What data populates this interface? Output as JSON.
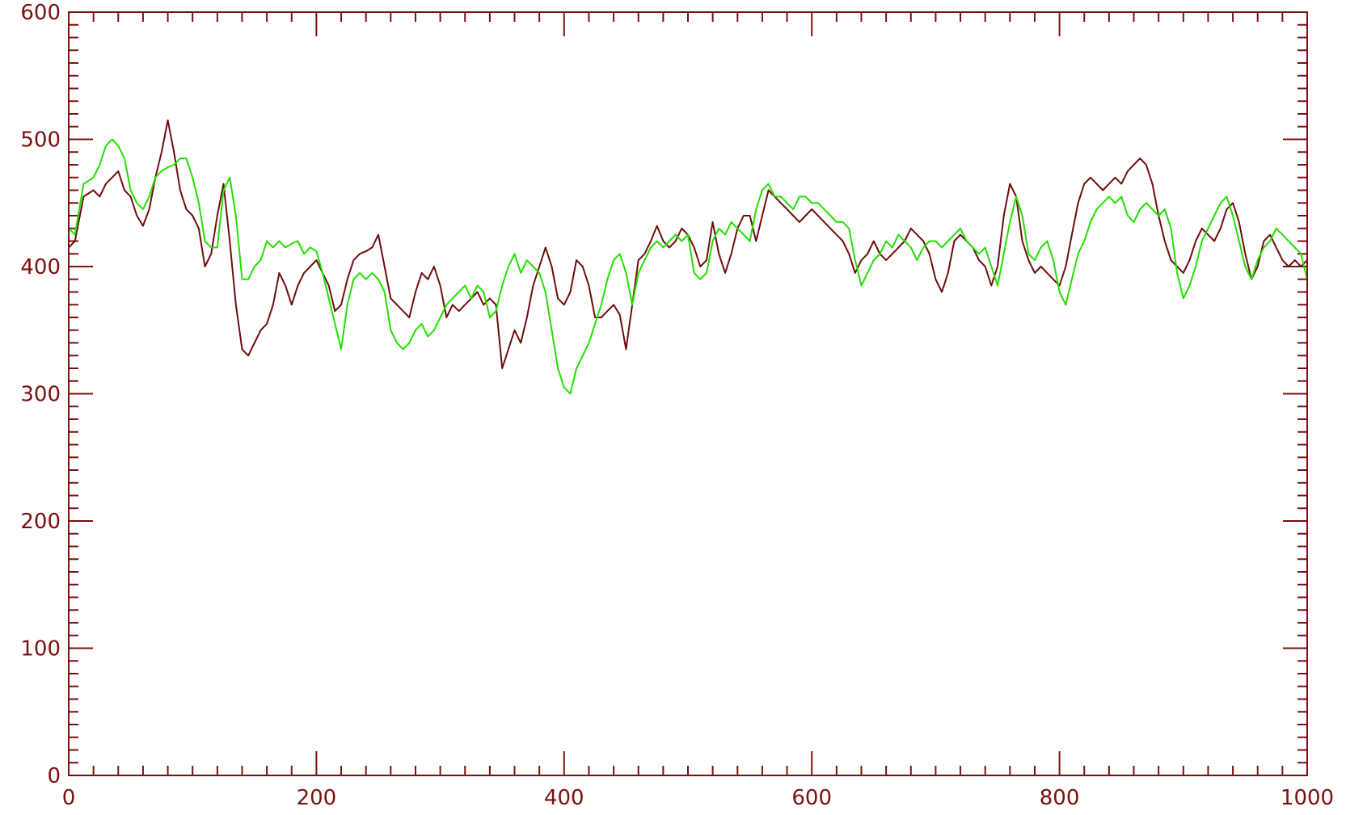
{
  "colors": {
    "axis": "#7a1010",
    "series_primary": "#6e0d0d",
    "series_secondary": "#22e000",
    "background": "#ffffff"
  },
  "chart_data": {
    "type": "line",
    "xlim": [
      0,
      1000
    ],
    "ylim": [
      0,
      600
    ],
    "x_ticks": [
      0,
      200,
      400,
      600,
      800,
      1000
    ],
    "y_ticks": [
      0,
      100,
      200,
      300,
      400,
      500,
      600
    ],
    "x_tick_labels": [
      "0",
      "200",
      "400",
      "600",
      "800",
      "1000"
    ],
    "y_tick_labels": [
      "0",
      "100",
      "200",
      "300",
      "400",
      "500",
      "600"
    ],
    "x_minor_step": 20,
    "y_minor_step": 10,
    "grid": false,
    "series": [
      {
        "color": "#6e0d0d",
        "x": [
          0,
          5,
          12,
          20,
          25,
          30,
          35,
          40,
          45,
          50,
          55,
          60,
          65,
          70,
          75,
          80,
          85,
          90,
          95,
          100,
          105,
          110,
          115,
          120,
          125,
          130,
          135,
          140,
          145,
          150,
          155,
          160,
          165,
          170,
          175,
          180,
          185,
          190,
          195,
          200,
          205,
          210,
          215,
          220,
          225,
          230,
          235,
          240,
          245,
          250,
          255,
          260,
          265,
          270,
          275,
          280,
          285,
          290,
          295,
          300,
          305,
          310,
          315,
          320,
          325,
          330,
          335,
          340,
          345,
          350,
          355,
          360,
          365,
          370,
          375,
          380,
          385,
          390,
          395,
          400,
          405,
          410,
          415,
          420,
          425,
          430,
          435,
          440,
          445,
          450,
          455,
          460,
          465,
          470,
          475,
          480,
          485,
          490,
          495,
          500,
          505,
          510,
          515,
          520,
          525,
          530,
          535,
          540,
          545,
          550,
          555,
          560,
          565,
          570,
          575,
          580,
          585,
          590,
          595,
          600,
          605,
          610,
          615,
          620,
          625,
          630,
          635,
          640,
          645,
          650,
          655,
          660,
          665,
          670,
          675,
          680,
          685,
          690,
          695,
          700,
          705,
          710,
          715,
          720,
          725,
          730,
          735,
          740,
          745,
          750,
          755,
          760,
          765,
          770,
          775,
          780,
          785,
          790,
          795,
          800,
          805,
          810,
          815,
          820,
          825,
          830,
          835,
          840,
          845,
          850,
          855,
          860,
          865,
          870,
          875,
          880,
          885,
          890,
          895,
          900,
          905,
          910,
          915,
          920,
          925,
          930,
          935,
          940,
          945,
          950,
          955,
          960,
          965,
          970,
          975,
          980,
          985,
          990,
          995,
          1000
        ],
        "y": [
          415,
          420,
          455,
          460,
          455,
          465,
          470,
          475,
          460,
          455,
          440,
          432,
          445,
          470,
          490,
          515,
          490,
          460,
          445,
          440,
          430,
          400,
          410,
          440,
          465,
          420,
          370,
          335,
          330,
          340,
          350,
          355,
          370,
          395,
          385,
          370,
          385,
          395,
          400,
          405,
          395,
          385,
          365,
          370,
          390,
          405,
          410,
          412,
          415,
          425,
          400,
          375,
          370,
          365,
          360,
          380,
          395,
          390,
          400,
          385,
          360,
          370,
          365,
          370,
          375,
          380,
          370,
          375,
          370,
          320,
          335,
          350,
          340,
          360,
          385,
          400,
          415,
          400,
          375,
          370,
          380,
          405,
          400,
          385,
          360,
          360,
          365,
          370,
          362,
          335,
          370,
          405,
          410,
          420,
          432,
          420,
          415,
          420,
          430,
          425,
          415,
          400,
          405,
          435,
          410,
          395,
          410,
          430,
          440,
          440,
          420,
          440,
          460,
          455,
          450,
          445,
          440,
          435,
          440,
          445,
          440,
          435,
          430,
          425,
          420,
          410,
          395,
          405,
          410,
          420,
          410,
          405,
          410,
          415,
          420,
          430,
          425,
          420,
          410,
          390,
          380,
          395,
          420,
          425,
          420,
          415,
          405,
          400,
          385,
          400,
          440,
          465,
          455,
          420,
          405,
          395,
          400,
          395,
          390,
          385,
          400,
          425,
          450,
          465,
          470,
          465,
          460,
          465,
          470,
          465,
          475,
          480,
          485,
          480,
          465,
          440,
          420,
          405,
          400,
          395,
          405,
          420,
          430,
          425,
          420,
          430,
          445,
          450,
          435,
          410,
          390,
          400,
          420,
          425,
          415,
          405,
          400,
          405,
          400,
          405
        ]
      },
      {
        "color": "#22e000",
        "x": [
          0,
          5,
          12,
          20,
          25,
          30,
          35,
          40,
          45,
          50,
          55,
          60,
          65,
          70,
          75,
          80,
          85,
          90,
          95,
          100,
          105,
          110,
          115,
          120,
          125,
          130,
          135,
          140,
          145,
          150,
          155,
          160,
          165,
          170,
          175,
          180,
          185,
          190,
          195,
          200,
          205,
          210,
          215,
          220,
          225,
          230,
          235,
          240,
          245,
          250,
          255,
          260,
          265,
          270,
          275,
          280,
          285,
          290,
          295,
          300,
          305,
          310,
          315,
          320,
          325,
          330,
          335,
          340,
          345,
          350,
          355,
          360,
          365,
          370,
          375,
          380,
          385,
          390,
          395,
          400,
          405,
          410,
          415,
          420,
          425,
          430,
          435,
          440,
          445,
          450,
          455,
          460,
          465,
          470,
          475,
          480,
          485,
          490,
          495,
          500,
          505,
          510,
          515,
          520,
          525,
          530,
          535,
          540,
          545,
          550,
          555,
          560,
          565,
          570,
          575,
          580,
          585,
          590,
          595,
          600,
          605,
          610,
          615,
          620,
          625,
          630,
          635,
          640,
          645,
          650,
          655,
          660,
          665,
          670,
          675,
          680,
          685,
          690,
          695,
          700,
          705,
          710,
          715,
          720,
          725,
          730,
          735,
          740,
          745,
          750,
          755,
          760,
          765,
          770,
          775,
          780,
          785,
          790,
          795,
          800,
          805,
          810,
          815,
          820,
          825,
          830,
          835,
          840,
          845,
          850,
          855,
          860,
          865,
          870,
          875,
          880,
          885,
          890,
          895,
          900,
          905,
          910,
          915,
          920,
          925,
          930,
          935,
          940,
          945,
          950,
          955,
          960,
          965,
          970,
          975,
          980,
          985,
          990,
          995,
          1000
        ],
        "y": [
          430,
          425,
          465,
          470,
          480,
          495,
          500,
          495,
          485,
          460,
          450,
          445,
          455,
          470,
          475,
          478,
          480,
          485,
          485,
          470,
          450,
          420,
          415,
          415,
          460,
          470,
          440,
          390,
          390,
          400,
          405,
          420,
          415,
          420,
          415,
          418,
          420,
          410,
          415,
          412,
          395,
          375,
          355,
          335,
          370,
          390,
          395,
          390,
          395,
          390,
          380,
          350,
          340,
          335,
          340,
          350,
          355,
          345,
          350,
          360,
          370,
          375,
          380,
          385,
          375,
          385,
          380,
          360,
          365,
          385,
          400,
          410,
          395,
          405,
          400,
          395,
          380,
          350,
          320,
          305,
          300,
          320,
          330,
          340,
          355,
          370,
          390,
          405,
          410,
          395,
          370,
          395,
          405,
          415,
          420,
          415,
          420,
          425,
          420,
          425,
          395,
          390,
          395,
          420,
          430,
          425,
          435,
          430,
          425,
          420,
          445,
          460,
          465,
          455,
          455,
          450,
          445,
          455,
          455,
          450,
          450,
          445,
          440,
          435,
          435,
          430,
          405,
          385,
          395,
          405,
          410,
          420,
          415,
          425,
          420,
          415,
          405,
          415,
          420,
          420,
          415,
          420,
          425,
          430,
          420,
          415,
          410,
          415,
          400,
          385,
          410,
          435,
          455,
          440,
          410,
          405,
          415,
          420,
          405,
          380,
          370,
          390,
          410,
          420,
          435,
          445,
          450,
          455,
          450,
          455,
          440,
          435,
          445,
          450,
          445,
          440,
          445,
          430,
          395,
          375,
          385,
          400,
          420,
          430,
          440,
          450,
          455,
          440,
          420,
          400,
          390,
          405,
          415,
          420,
          430,
          425,
          420,
          415,
          410,
          390
        ]
      }
    ]
  }
}
